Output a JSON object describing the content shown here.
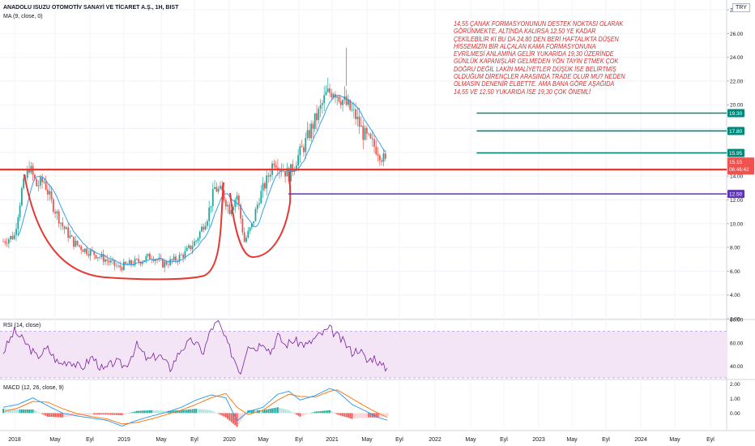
{
  "header": {
    "symbol": "ANADOLU ISUZU OTOMOTİV SANAYİ VE TİCARET A.Ş., 1H, BIST",
    "ma_label": "MA (9, close, 0)",
    "rsi_label": "RSI (14, close)",
    "macd_label": "MACD (12, 26, close, 9)",
    "currency": "TRY"
  },
  "annotation": {
    "lines": [
      "14,55 ÇANAK FORMASYONUNUN DESTEK NOKTASI OLARAK",
      "GÖRÜNMEKTE,  ALTINDA KALIRSA 12,50 YE KADAR",
      "ÇEKİLEBİLİR Kİ BU DA 24,80 DEN BERİ HAFTALIKTA DÜŞEN",
      "HİSSEMİZİN BİR ALÇALAN KAMA FORMASYONUNA",
      "EVRİLMESİ ANLAMINA GELİR YUKARIDA 19,30 ÜZERİNDE",
      "GÜNLÜK KAPANIŞLAR GELMEDEN YÖN TAYİN ETMEK ÇOK",
      "DOĞRU DEĞİL LAKİN MALİYETLER DÜŞÜK İSE BELİRTMİŞ",
      "OLDUĞUM DİRENÇLER ARASINDA TRADE OLUR MU? NEDEN",
      "OLMASIN DENENİR ELBETTE.  AMA BANA GÖRE AŞAĞIDA",
      "14,55 VE 12,50 YUKARIDA İSE 19,30 ÇOK ÖNEMLİ"
    ]
  },
  "colors": {
    "up": "#26a69a",
    "down": "#ef5350",
    "ma": "#2196f3",
    "support": "#e53935",
    "resistance": "#00897b",
    "lower_target": "#5e35b1",
    "rsi": "#7b1fa2",
    "rsi_band": "#f3e5f5",
    "macd_line": "#2196f3",
    "signal_line": "#ff6d00",
    "price_tag": "#ef5350"
  },
  "chart_data": [
    {
      "type": "candlestick",
      "panel": "price",
      "y_ticks": [
        "28.00",
        "26.00",
        "24.00",
        "22.00",
        "20.00",
        "18.00",
        "16.00",
        "14.00",
        "12.00",
        "10.00",
        "8.00",
        "6.00",
        "4.00",
        "2.00"
      ],
      "ylim": [
        2,
        28
      ],
      "x_ticks": [
        "2018",
        "May",
        "Eyl",
        "2019",
        "May",
        "Eyl",
        "2020",
        "May",
        "Eyl",
        "2021",
        "May",
        "Eyl",
        "2022",
        "May",
        "Eyl",
        "2023",
        "May",
        "Eyl",
        "2024",
        "May",
        "Eyl"
      ],
      "close_path": [
        [
          0,
          8.5
        ],
        [
          3,
          9.0
        ],
        [
          5,
          12.8
        ],
        [
          7,
          14.8
        ],
        [
          9,
          13.2
        ],
        [
          11,
          13.6
        ],
        [
          13,
          11.8
        ],
        [
          16,
          9.8
        ],
        [
          19,
          8.4
        ],
        [
          22,
          7.8
        ],
        [
          25,
          7.4
        ],
        [
          28,
          6.9
        ],
        [
          31,
          6.3
        ],
        [
          34,
          6.6
        ],
        [
          37,
          6.9
        ],
        [
          40,
          7.3
        ],
        [
          43,
          6.6
        ],
        [
          46,
          6.9
        ],
        [
          49,
          7.5
        ],
        [
          52,
          8.6
        ],
        [
          55,
          10.6
        ],
        [
          57,
          13.0
        ],
        [
          59,
          12.6
        ],
        [
          61,
          11.2
        ],
        [
          63,
          12.4
        ],
        [
          65,
          8.5
        ],
        [
          67,
          9.8
        ],
        [
          69,
          12.2
        ],
        [
          71,
          13.6
        ],
        [
          73,
          15.4
        ],
        [
          75,
          14.7
        ],
        [
          77,
          14.1
        ],
        [
          79,
          15.4
        ],
        [
          81,
          16.5
        ],
        [
          83,
          18.0
        ],
        [
          85,
          19.3
        ],
        [
          87,
          20.8
        ],
        [
          89,
          21.3
        ],
        [
          91,
          20.6
        ],
        [
          93,
          19.8
        ],
        [
          95,
          19.0
        ],
        [
          97,
          17.6
        ],
        [
          99,
          16.8
        ],
        [
          101,
          16.2
        ],
        [
          103,
          15.15
        ]
      ],
      "series": [
        {
          "name": "MA (9, close, 0)"
        }
      ],
      "last_price": "15.15",
      "countdown": "06:46:42",
      "levels": [
        {
          "value": 19.3,
          "label": "19.30",
          "color": "#00897b",
          "from": 0.656
        },
        {
          "value": 17.8,
          "label": "17.80",
          "color": "#00897b",
          "from": 0.656
        },
        {
          "value": 15.95,
          "label": "15.95",
          "color": "#00897b",
          "from": 0.656
        },
        {
          "value": 14.55,
          "label": "14.55",
          "color": "#e53935",
          "from": 0.0
        },
        {
          "value": 12.5,
          "label": "12.50",
          "color": "#5e35b1",
          "from": 0.397
        }
      ],
      "patterns": [
        "cup",
        "handle"
      ]
    },
    {
      "type": "line",
      "panel": "rsi",
      "y_ticks": [
        "80.00",
        "60.00",
        "40.00"
      ],
      "ylim": [
        30,
        80
      ],
      "band": [
        30,
        70
      ],
      "path": [
        [
          0,
          52
        ],
        [
          3,
          70
        ],
        [
          6,
          60
        ],
        [
          9,
          48
        ],
        [
          12,
          55
        ],
        [
          15,
          42
        ],
        [
          18,
          45
        ],
        [
          21,
          38
        ],
        [
          24,
          48
        ],
        [
          27,
          36
        ],
        [
          30,
          44
        ],
        [
          33,
          40
        ],
        [
          36,
          58
        ],
        [
          39,
          45
        ],
        [
          42,
          50
        ],
        [
          45,
          38
        ],
        [
          48,
          55
        ],
        [
          51,
          62
        ],
        [
          54,
          52
        ],
        [
          56,
          72
        ],
        [
          58,
          78
        ],
        [
          60,
          62
        ],
        [
          62,
          48
        ],
        [
          64,
          35
        ],
        [
          66,
          60
        ],
        [
          68,
          55
        ],
        [
          70,
          62
        ],
        [
          72,
          52
        ],
        [
          74,
          66
        ],
        [
          76,
          58
        ],
        [
          78,
          62
        ],
        [
          80,
          60
        ],
        [
          82,
          58
        ],
        [
          84,
          64
        ],
        [
          86,
          68
        ],
        [
          88,
          72
        ],
        [
          90,
          66
        ],
        [
          92,
          60
        ],
        [
          94,
          52
        ],
        [
          96,
          55
        ],
        [
          98,
          44
        ],
        [
          100,
          48
        ],
        [
          102,
          40
        ],
        [
          103.6,
          38
        ]
      ]
    },
    {
      "type": "macd",
      "panel": "macd",
      "y_ticks": [
        "2.00",
        "1.00",
        "0.00"
      ],
      "ylim": [
        -1.15,
        2.2
      ],
      "macd": [
        [
          0,
          0.4
        ],
        [
          4,
          0.6
        ],
        [
          8,
          1.05
        ],
        [
          12,
          0.5
        ],
        [
          16,
          0.0
        ],
        [
          20,
          -0.2
        ],
        [
          24,
          -0.35
        ],
        [
          28,
          -0.5
        ],
        [
          32,
          -0.9
        ],
        [
          36,
          -0.5
        ],
        [
          40,
          -0.2
        ],
        [
          44,
          0.05
        ],
        [
          48,
          0.4
        ],
        [
          52,
          0.9
        ],
        [
          56,
          1.25
        ],
        [
          60,
          1.05
        ],
        [
          63,
          -0.55
        ],
        [
          66,
          0.1
        ],
        [
          70,
          0.4
        ],
        [
          74,
          1.3
        ],
        [
          77,
          1.5
        ],
        [
          80,
          0.9
        ],
        [
          84,
          1.2
        ],
        [
          88,
          1.7
        ],
        [
          90,
          1.5
        ],
        [
          94,
          0.6
        ],
        [
          98,
          0.1
        ],
        [
          101,
          -0.3
        ],
        [
          103.6,
          -0.5
        ]
      ],
      "signal": [
        [
          0,
          0.1
        ],
        [
          4,
          0.35
        ],
        [
          8,
          0.8
        ],
        [
          12,
          0.75
        ],
        [
          16,
          0.3
        ],
        [
          20,
          -0.05
        ],
        [
          24,
          -0.25
        ],
        [
          28,
          -0.4
        ],
        [
          32,
          -0.75
        ],
        [
          36,
          -0.65
        ],
        [
          40,
          -0.4
        ],
        [
          44,
          -0.1
        ],
        [
          48,
          0.2
        ],
        [
          52,
          0.6
        ],
        [
          56,
          1.05
        ],
        [
          60,
          1.35
        ],
        [
          63,
          0.4
        ],
        [
          66,
          -0.1
        ],
        [
          70,
          0.2
        ],
        [
          74,
          0.9
        ],
        [
          77,
          1.3
        ],
        [
          80,
          1.15
        ],
        [
          84,
          1.1
        ],
        [
          88,
          1.5
        ],
        [
          90,
          1.6
        ],
        [
          94,
          1.0
        ],
        [
          98,
          0.4
        ],
        [
          101,
          0.0
        ],
        [
          103.6,
          -0.3
        ]
      ]
    }
  ]
}
